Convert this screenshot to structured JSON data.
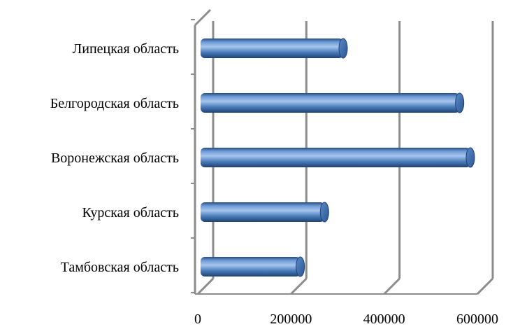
{
  "chart_data": {
    "type": "bar",
    "orientation": "horizontal",
    "style": "3d-cylinder",
    "categories": [
      "Липецкая область",
      "Белгородская область",
      "Воронежская область",
      "Курская область",
      "Тамбовская область"
    ],
    "values": [
      312000,
      562000,
      585000,
      272000,
      220000
    ],
    "xlim": [
      0,
      600000
    ],
    "xticks": [
      "0",
      "200000",
      "400000",
      "600000"
    ],
    "grid": true,
    "legend": "none",
    "colors": {
      "bar": "#4a7ebb",
      "bar_light": "#9bbce6",
      "bar_dark": "#244d82",
      "grid": "#8c8c8c"
    }
  }
}
